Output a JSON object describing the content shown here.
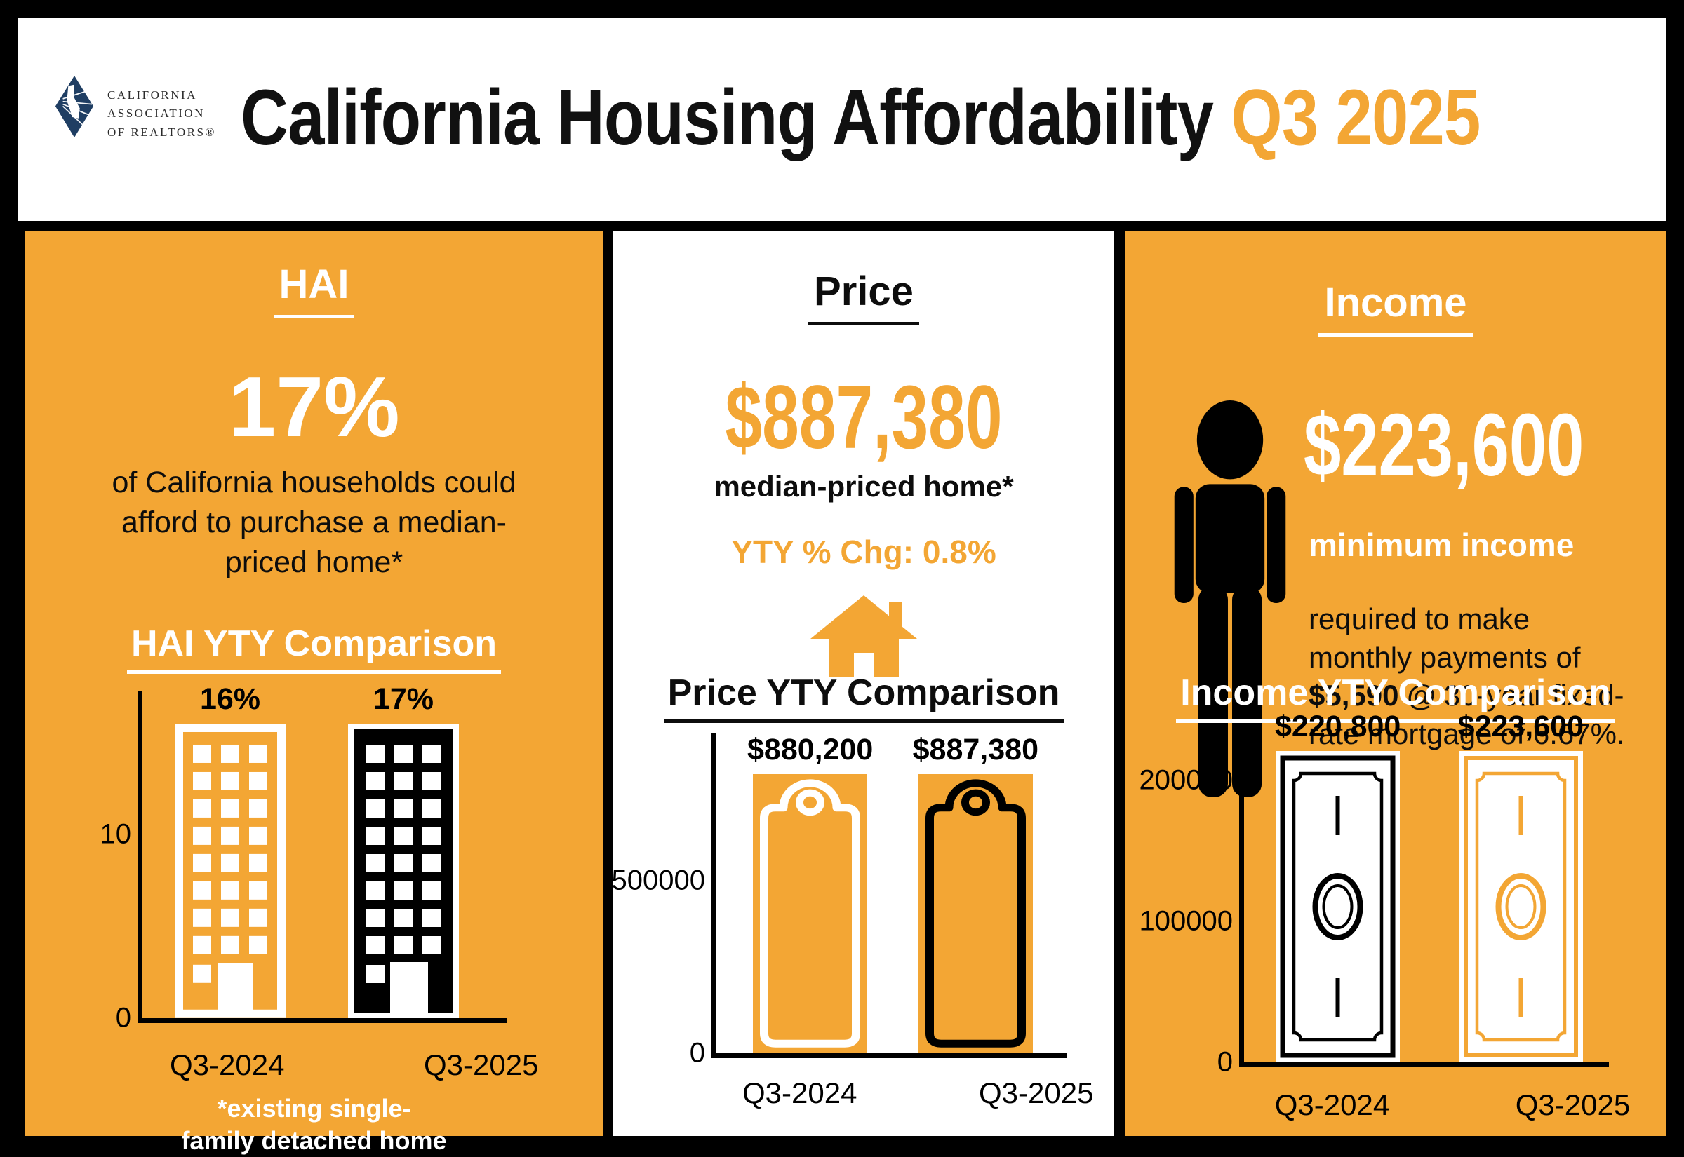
{
  "colors": {
    "orange": "#F3A634",
    "navy": "#1F3E63",
    "black": "#000000",
    "white": "#FFFFFF"
  },
  "header": {
    "logo_lines": [
      "CALIFORNIA",
      "ASSOCIATION",
      "OF REALTORS®"
    ],
    "title_black": "California Housing Affordability",
    "title_orange": "Q3 2025"
  },
  "hai_panel": {
    "heading": "HAI",
    "stat": "17%",
    "description": "of California households could afford to purchase a median-priced home*",
    "footnote": [
      "*existing single-",
      "family detached home"
    ]
  },
  "price_panel": {
    "heading": "Price",
    "stat": "$887,380",
    "caption": "median-priced home*",
    "yty_change": "YTY % Chg: 0.8%"
  },
  "income_panel": {
    "heading": "Income",
    "stat": "$223,600",
    "caption_bold": "minimum income",
    "desc_part1": "required to make monthly payments of ",
    "desc_bold": "$5,590 @",
    "desc_part2": " 30-year fixed-rate mortgage of 6.67%."
  },
  "chart_data": [
    {
      "type": "bar",
      "title": "HAI YTY Comparison",
      "categories": [
        "Q3-2024",
        "Q3-2025"
      ],
      "values": [
        16,
        17
      ],
      "value_labels": [
        "16%",
        "17%"
      ],
      "unit": "percent of households",
      "ticks": [
        {
          "label": "10",
          "v": 10
        },
        {
          "label": "0",
          "v": 0
        }
      ],
      "ylim": [
        0,
        17.8
      ],
      "grid": false,
      "legend": "none",
      "bar_icons": [
        "building-outline-white",
        "building-solid-black"
      ]
    },
    {
      "type": "bar",
      "title": "Price YTY Comparison",
      "categories": [
        "Q3-2024",
        "Q3-2025"
      ],
      "values": [
        880200,
        887380
      ],
      "value_labels": [
        "$880,200",
        "$887,380"
      ],
      "unit": "USD",
      "ticks": [
        {
          "label": "500000",
          "v": 500000
        },
        {
          "label": "0",
          "v": 0
        }
      ],
      "ylim": [
        0,
        929000
      ],
      "grid": false,
      "legend": "none",
      "bar_icons": [
        "price-tag-white",
        "price-tag-black"
      ]
    },
    {
      "type": "bar",
      "title": "Income YTY Comparison",
      "categories": [
        "Q3-2024",
        "Q3-2025"
      ],
      "values": [
        220800,
        223600
      ],
      "value_labels": [
        "$220,800",
        "$223,600"
      ],
      "unit": "USD",
      "ticks": [
        {
          "label": "200000",
          "v": 200000
        },
        {
          "label": "100000",
          "v": 100000
        },
        {
          "label": "0",
          "v": 0
        }
      ],
      "ylim": [
        0,
        233700
      ],
      "grid": false,
      "legend": "none",
      "bar_icons": [
        "dollar-bill-black",
        "dollar-bill-orange"
      ]
    }
  ]
}
